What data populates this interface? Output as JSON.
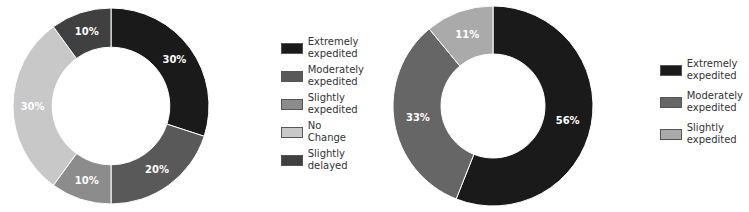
{
  "chart_data": [
    {
      "type": "donut",
      "categories": [
        "Extremely\nexpedited",
        "Moderately\nexpedited",
        "Slightly\nexpedited",
        "No\nChange",
        "Slightly\ndelayed"
      ],
      "values": [
        30,
        20,
        10,
        30,
        10
      ],
      "value_labels": [
        "30%",
        "20%",
        "10%",
        "30%",
        "10%"
      ],
      "colors": [
        "#1a1a1a",
        "#595959",
        "#8c8c8c",
        "#c8c8c8",
        "#404040"
      ],
      "data_labels": true,
      "legend": "right"
    },
    {
      "type": "donut",
      "categories": [
        "Extremely\nexpedited",
        "Moderately\nexpedited",
        "Slightly\nexpedited"
      ],
      "values": [
        56,
        33,
        11
      ],
      "value_labels": [
        "56%",
        "33%",
        "11%"
      ],
      "colors": [
        "#1a1a1a",
        "#666666",
        "#aaaaaa"
      ],
      "data_labels": true,
      "legend": "right"
    }
  ]
}
